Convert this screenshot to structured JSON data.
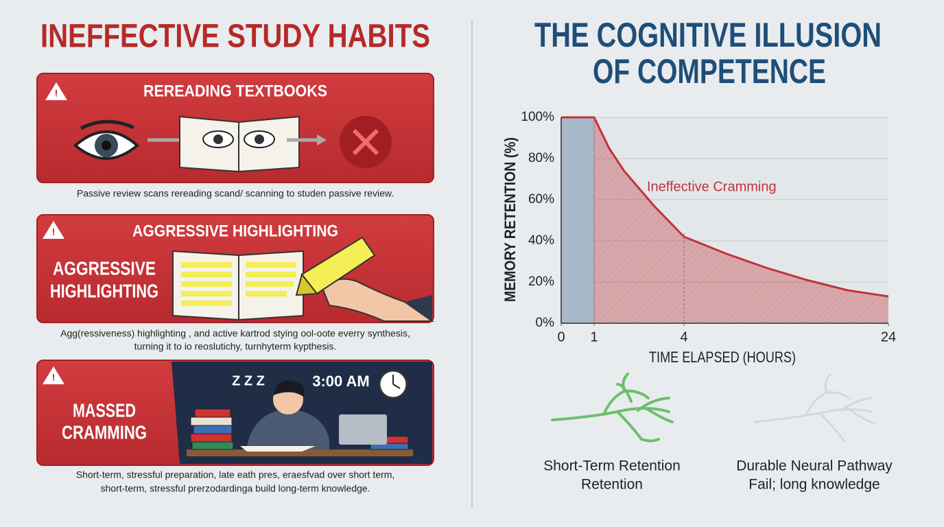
{
  "left": {
    "title": "INEFFECTIVE STUDY HABITS",
    "cards": [
      {
        "title": "REREADING TEXTBOOKS",
        "caption": [
          "Passive review scans rereading scand/ scanning to studen passive review."
        ]
      },
      {
        "title": "AGGRESSIVE HIGHLIGHTING",
        "side_label": [
          "AGGRESSIVE",
          "HIGHLIGHTING"
        ],
        "caption": [
          "Agg(ressiveness) highlighting , and active kartrod stying ool-oote everry synthesis,",
          "turning it to io reoslutichy, turnhyterm kypthesis."
        ]
      },
      {
        "side_label": [
          "MASSED",
          "CRAMMING"
        ],
        "time": "3:00 AM",
        "sleep": "Z Z Z",
        "caption": [
          "Short-term, stressful preparation, late eath pres, eraesfvad over short term,",
          "short-term, stressful prerzodardinga build long-term knowledge."
        ]
      }
    ]
  },
  "chart_data": {
    "type": "area",
    "title": [
      "THE COGNITIVE ILLUSION",
      "OF COMPETENCE"
    ],
    "y_label": "MEMORY RETENTION (%)",
    "x_label": "TIME ELAPSED (HOURS)",
    "x": [
      0,
      1,
      1.5,
      2,
      3,
      4,
      8,
      12,
      16,
      20,
      24
    ],
    "series": [
      {
        "name": "Ineffective Cramming",
        "color": "#c0333a",
        "values": [
          100,
          100,
          85,
          74,
          57,
          42,
          34,
          27,
          21,
          16,
          13
        ]
      }
    ],
    "xlim": [
      0,
      24
    ],
    "xticks": [
      0,
      1,
      4,
      24
    ],
    "ylim": [
      0,
      100
    ],
    "yticks": [
      {
        "value": 0,
        "label": "0%"
      },
      {
        "value": 20,
        "label": "20%"
      },
      {
        "value": 40,
        "label": "40%"
      },
      {
        "value": 60,
        "label": "60%"
      },
      {
        "value": 80,
        "label": "80%"
      },
      {
        "value": 100,
        "label": "100%"
      }
    ],
    "grid": true
  },
  "bottom": [
    {
      "label": [
        "Short-Term Retention",
        "Retention"
      ]
    },
    {
      "label": [
        "Durable Neural Pathway",
        "Fail; long knowledge"
      ]
    }
  ]
}
